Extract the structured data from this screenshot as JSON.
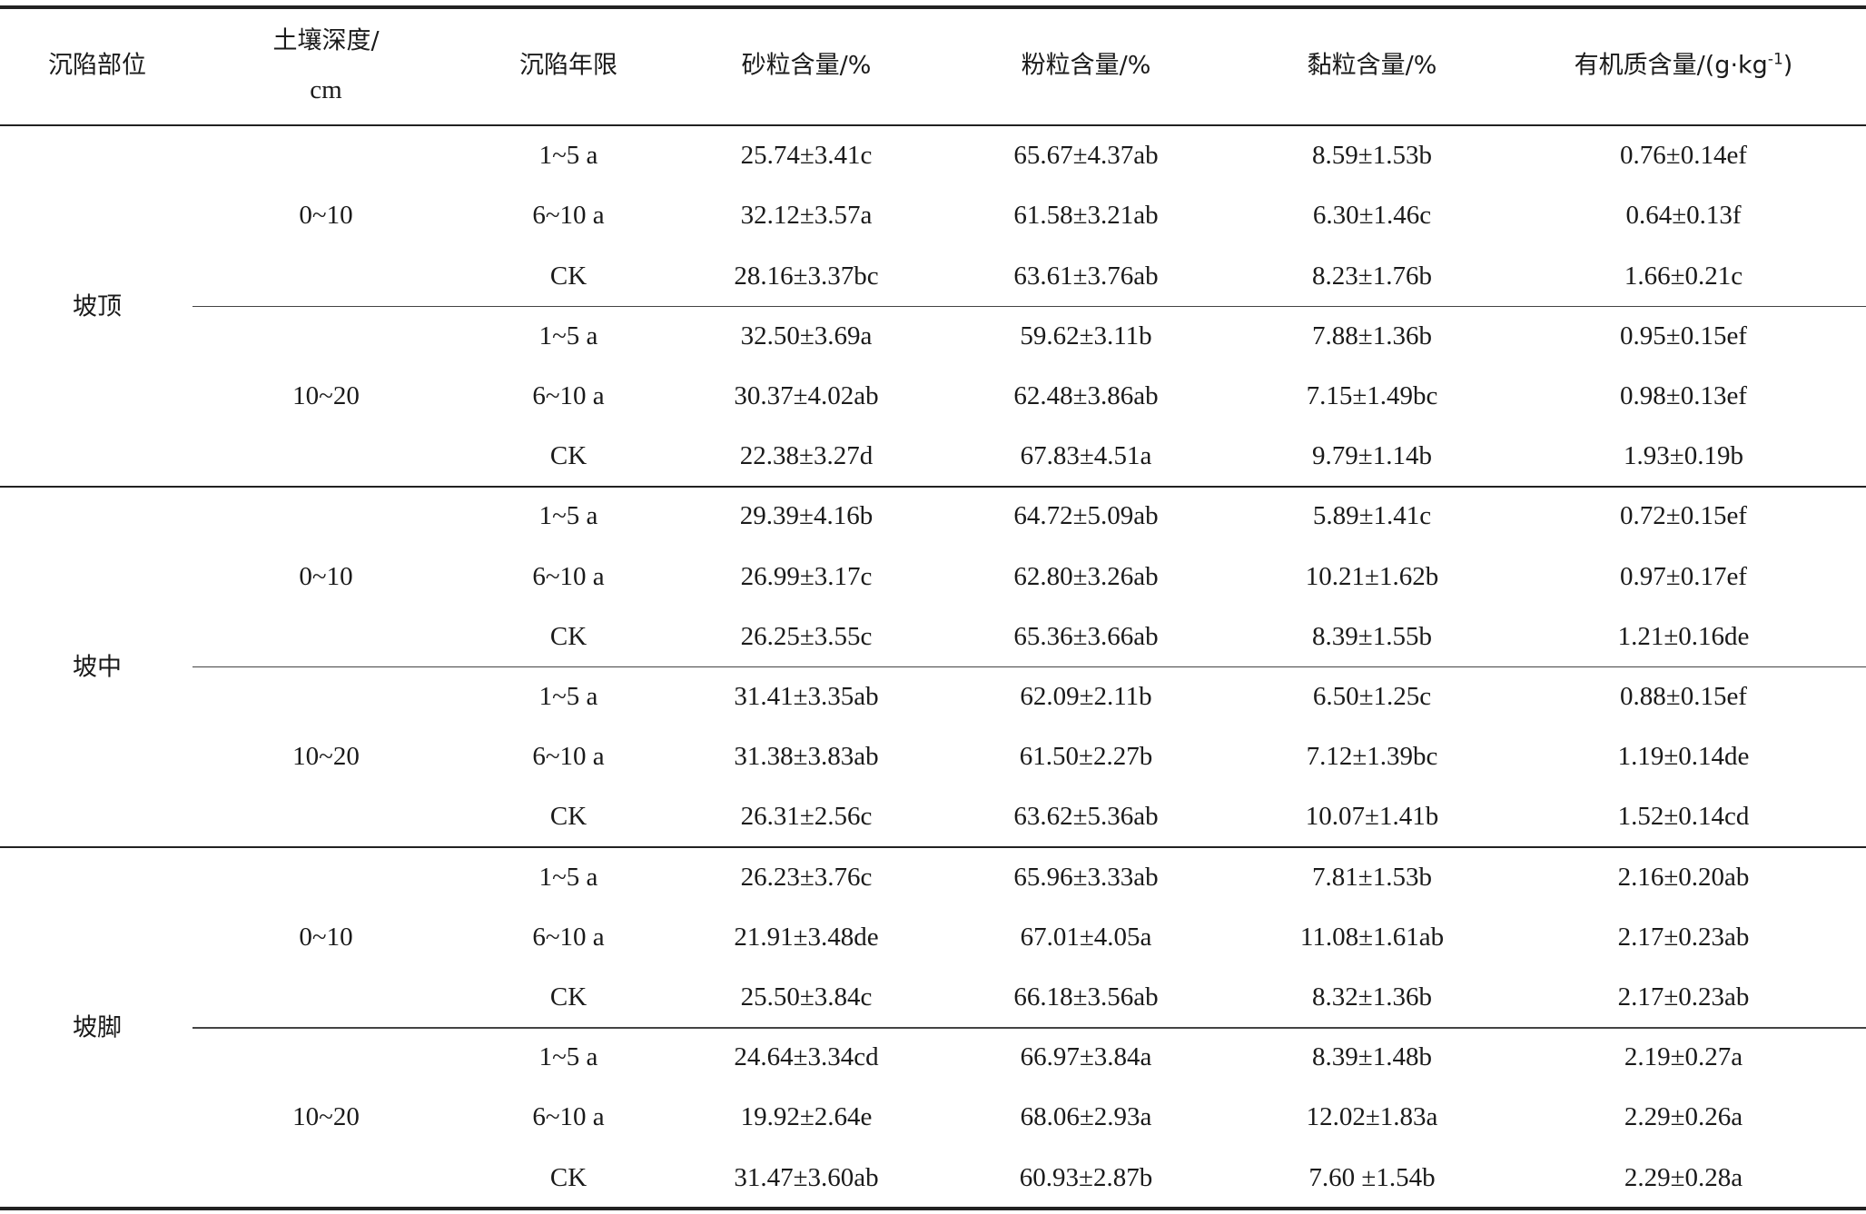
{
  "header": {
    "col1": "沉陷部位",
    "col2_line1": "土壤深度/",
    "col2_line2": "cm",
    "col3": "沉陷年限",
    "col4": "砂粒含量/%",
    "col5": "粉粒含量/%",
    "col6": "黏粒含量/%",
    "col7_main": "有机质含量/(g·kg",
    "col7_sup": "-1",
    "col7_end": ")"
  },
  "groups": [
    {
      "position": "坡顶",
      "depths": [
        {
          "depth": "0~10",
          "rows": [
            [
              "1~5 a",
              "25.74±3.41c",
              "65.67±4.37ab",
              "8.59±1.53b",
              "0.76±0.14ef"
            ],
            [
              "6~10 a",
              "32.12±3.57a",
              "61.58±3.21ab",
              "6.30±1.46c",
              "0.64±0.13f"
            ],
            [
              "CK",
              "28.16±3.37bc",
              "63.61±3.76ab",
              "8.23±1.76b",
              "1.66±0.21c"
            ]
          ]
        },
        {
          "depth": "10~20",
          "rows": [
            [
              "1~5 a",
              "32.50±3.69a",
              "59.62±3.11b",
              "7.88±1.36b",
              "0.95±0.15ef"
            ],
            [
              "6~10 a",
              "30.37±4.02ab",
              "62.48±3.86ab",
              "7.15±1.49bc",
              "0.98±0.13ef"
            ],
            [
              "CK",
              "22.38±3.27d",
              "67.83±4.51a",
              "9.79±1.14b",
              "1.93±0.19b"
            ]
          ]
        }
      ]
    },
    {
      "position": "坡中",
      "depths": [
        {
          "depth": "0~10",
          "rows": [
            [
              "1~5 a",
              "29.39±4.16b",
              "64.72±5.09ab",
              "5.89±1.41c",
              "0.72±0.15ef"
            ],
            [
              "6~10 a",
              "26.99±3.17c",
              "62.80±3.26ab",
              "10.21±1.62b",
              "0.97±0.17ef"
            ],
            [
              "CK",
              "26.25±3.55c",
              "65.36±3.66ab",
              "8.39±1.55b",
              "1.21±0.16de"
            ]
          ]
        },
        {
          "depth": "10~20",
          "rows": [
            [
              "1~5 a",
              "31.41±3.35ab",
              "62.09±2.11b",
              "6.50±1.25c",
              "0.88±0.15ef"
            ],
            [
              "6~10 a",
              "31.38±3.83ab",
              "61.50±2.27b",
              "7.12±1.39bc",
              "1.19±0.14de"
            ],
            [
              "CK",
              "26.31±2.56c",
              "63.62±5.36ab",
              "10.07±1.41b",
              "1.52±0.14cd"
            ]
          ]
        }
      ]
    },
    {
      "position": "坡脚",
      "depths": [
        {
          "depth": "0~10",
          "rows": [
            [
              "1~5 a",
              "26.23±3.76c",
              "65.96±3.33ab",
              "7.81±1.53b",
              "2.16±0.20ab"
            ],
            [
              "6~10 a",
              "21.91±3.48de",
              "67.01±4.05a",
              "11.08±1.61ab",
              "2.17±0.23ab"
            ],
            [
              "CK",
              "25.50±3.84c",
              "66.18±3.56ab",
              "8.32±1.36b",
              "2.17±0.23ab"
            ]
          ]
        },
        {
          "depth": "10~20",
          "rows": [
            [
              "1~5 a",
              "24.64±3.34cd",
              "66.97±3.84a",
              "8.39±1.48b",
              "2.19±0.27a"
            ],
            [
              "6~10 a",
              "19.92±2.64e",
              "68.06±2.93a",
              "12.02±1.83a",
              "2.29±0.26a"
            ],
            [
              "CK",
              "31.47±3.60ab",
              "60.93±2.87b",
              "7.60 ±1.54b",
              "2.29±0.28a"
            ]
          ]
        }
      ]
    }
  ]
}
